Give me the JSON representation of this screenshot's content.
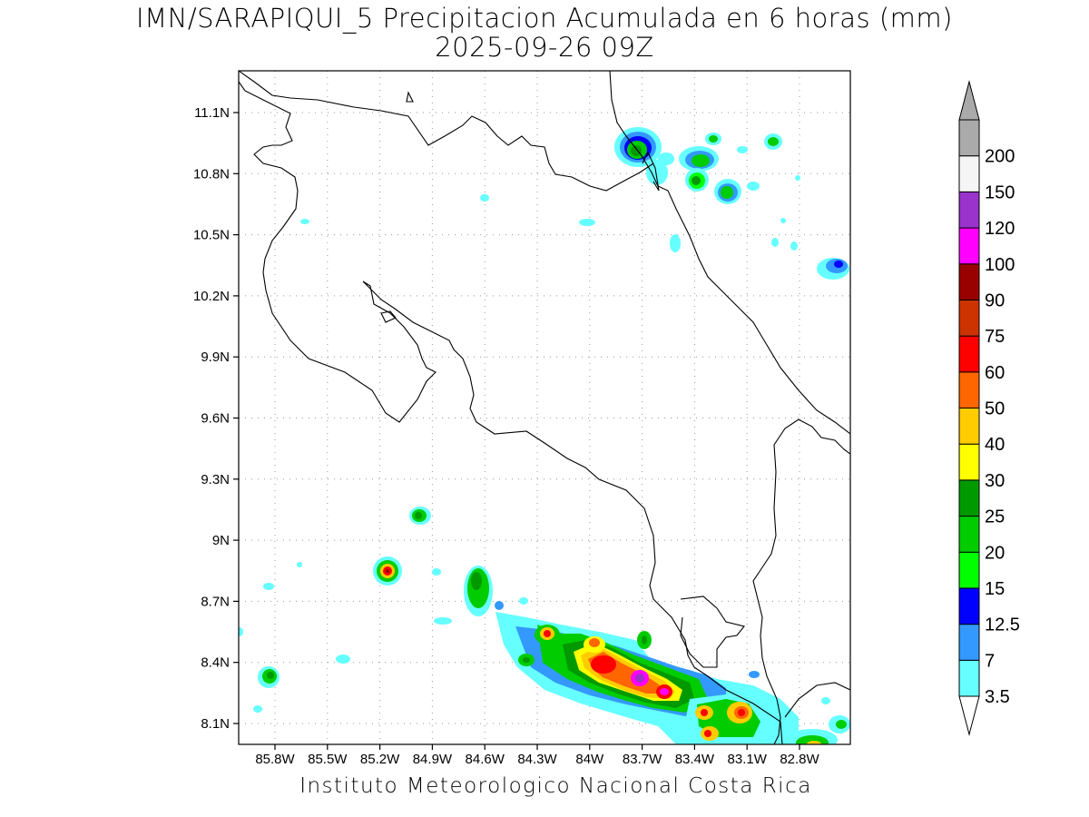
{
  "title_line1": "IMN/SARAPIQUI_5 Precipitacion Acumulada en 6 horas (mm)",
  "title_line2": "2025-09-26 09Z",
  "credit": "Instituto Meteorologico Nacional Costa Rica",
  "map": {
    "lat_ticks": [
      "11.1N",
      "10.8N",
      "10.5N",
      "10.2N",
      "9.9N",
      "9.6N",
      "9.3N",
      "9N",
      "8.7N",
      "8.4N",
      "8.1N"
    ],
    "lon_ticks": [
      "85.8W",
      "85.5W",
      "85.2W",
      "84.9W",
      "84.6W",
      "84.3W",
      "84W",
      "83.7W",
      "83.4W",
      "83.1W",
      "82.8W"
    ]
  },
  "colorbar": {
    "labels": [
      "3.5",
      "7",
      "12.5",
      "15",
      "20",
      "25",
      "30",
      "40",
      "50",
      "60",
      "75",
      "90",
      "100",
      "120",
      "150",
      "200"
    ],
    "colors": [
      "#66ffff",
      "#3399ff",
      "#0000ff",
      "#00ff00",
      "#00cc00",
      "#009900",
      "#ffff00",
      "#ffcc00",
      "#ff6600",
      "#ff0000",
      "#cc3300",
      "#990000",
      "#ff00ff",
      "#9933cc",
      "#f5f5f5",
      "#aaaaaa"
    ]
  }
}
